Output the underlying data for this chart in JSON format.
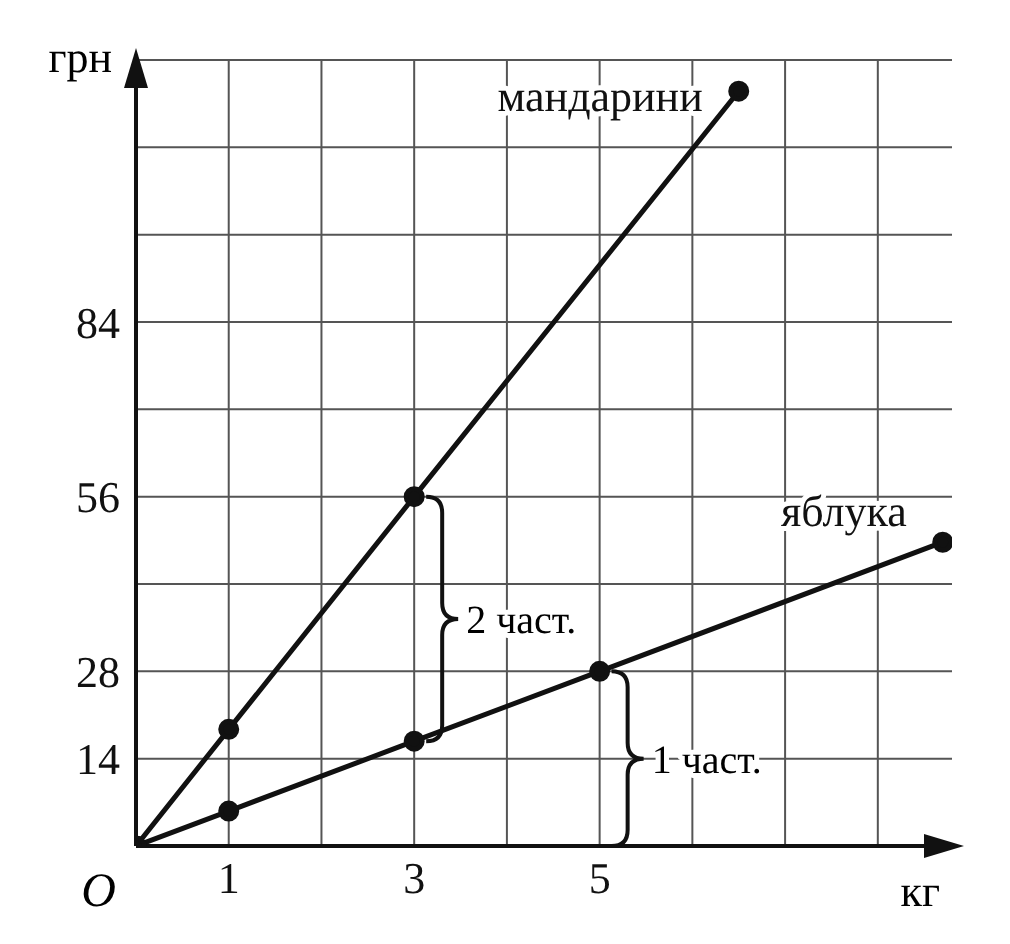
{
  "chart_data": {
    "type": "line",
    "xlabel": "кг",
    "ylabel": "грн",
    "series": [
      {
        "name": "мандарини",
        "color": "#111111",
        "x": [
          0,
          1,
          3,
          6.5
        ],
        "values": [
          0,
          18.7,
          56,
          121
        ]
      },
      {
        "name": "яблука",
        "color": "#111111",
        "x": [
          0,
          1,
          3,
          5,
          8.7
        ],
        "values": [
          0,
          5.6,
          16.8,
          28,
          48.7
        ]
      }
    ],
    "xlim": [
      0,
      8.8
    ],
    "ylim": [
      0,
      126
    ],
    "xticks": [
      1,
      {
        "value": 2,
        "label": null
      },
      3,
      {
        "value": 4,
        "label": null
      },
      5,
      {
        "value": 6,
        "label": null
      },
      {
        "value": 7,
        "label": null
      },
      {
        "value": 8,
        "label": null
      }
    ],
    "yticks": [
      14,
      28,
      {
        "value": 42,
        "label": null
      },
      56,
      {
        "value": 70,
        "label": null
      },
      84,
      {
        "value": 98,
        "label": null
      },
      {
        "value": 112,
        "label": null
      },
      {
        "value": 126,
        "label": null
      }
    ],
    "grid": true,
    "marker": "circle",
    "line_style": "solid",
    "annotations": [
      "O",
      "2 част.",
      "1 част."
    ]
  }
}
